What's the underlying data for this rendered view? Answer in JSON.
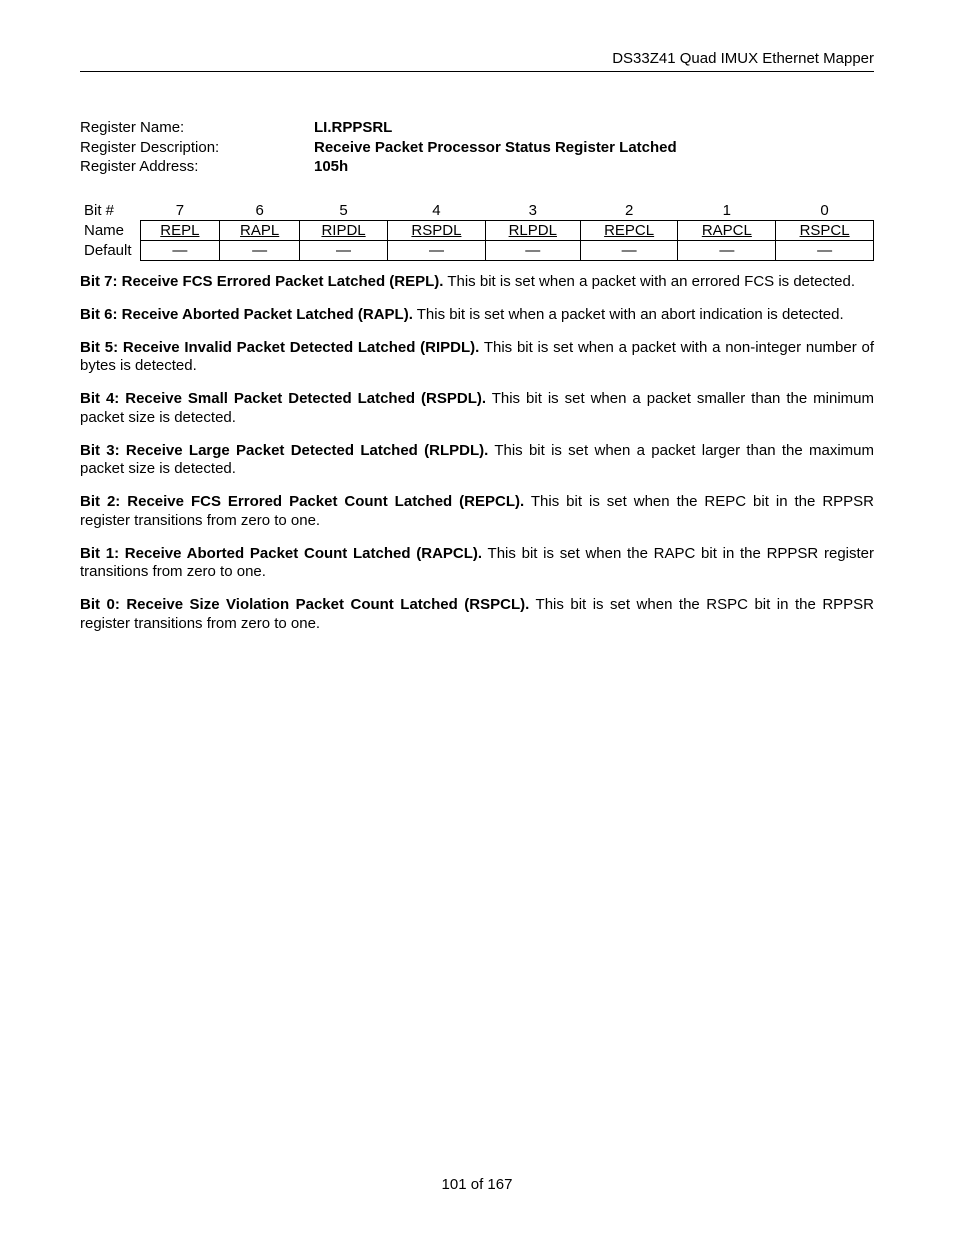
{
  "header": {
    "product": "DS33Z41 Quad IMUX Ethernet Mapper"
  },
  "register": {
    "name_label": "Register Name:",
    "desc_label": "Register Description:",
    "addr_label": "Register Address:",
    "name": "LI.RPPSRL",
    "description": "Receive Packet Processor Status Register Latched",
    "address": "105h"
  },
  "table": {
    "bit_label": "Bit #",
    "name_label": "Name",
    "default_label": "Default",
    "bits": [
      "7",
      "6",
      "5",
      "4",
      "3",
      "2",
      "1",
      "0"
    ],
    "names": [
      "REPL",
      "RAPL",
      "RIPDL",
      "RSPDL",
      "RLPDL",
      "REPCL",
      "RAPCL",
      "RSPCL"
    ],
    "defaults": [
      "—",
      "—",
      "—",
      "—",
      "—",
      "—",
      "—",
      "—"
    ]
  },
  "descriptions": [
    {
      "title": "Bit 7: Receive FCS Errored Packet Latched (REPL).",
      "body": " This bit is set when a packet with an errored FCS is detected."
    },
    {
      "title": "Bit 6: Receive Aborted Packet Latched (RAPL).",
      "body": " This bit is set when a packet with an abort indication is detected."
    },
    {
      "title": "Bit 5: Receive Invalid Packet Detected Latched (RIPDL).",
      "body": " This bit is set when a packet with a non-integer number of bytes is detected."
    },
    {
      "title": "Bit 4: Receive Small Packet Detected Latched (RSPDL).",
      "body": " This bit is set when a packet smaller than the minimum packet size is detected."
    },
    {
      "title": "Bit 3: Receive Large Packet Detected Latched (RLPDL).",
      "body": " This bit is set when a packet larger than the maximum packet size is detected."
    },
    {
      "title": "Bit 2: Receive FCS Errored Packet Count Latched (REPCL).",
      "body": " This bit is set when the REPC bit in the RPPSR register transitions from zero to one."
    },
    {
      "title": "Bit 1: Receive Aborted Packet Count Latched (RAPCL).",
      "body": " This bit is set when the RAPC bit in the RPPSR register transitions from zero to one."
    },
    {
      "title": "Bit 0: Receive Size Violation Packet Count Latched (RSPCL).",
      "body": " This bit is set when the RSPC bit in the RPPSR register transitions from zero to one."
    }
  ],
  "footer": {
    "page_info": "101 of 167"
  }
}
